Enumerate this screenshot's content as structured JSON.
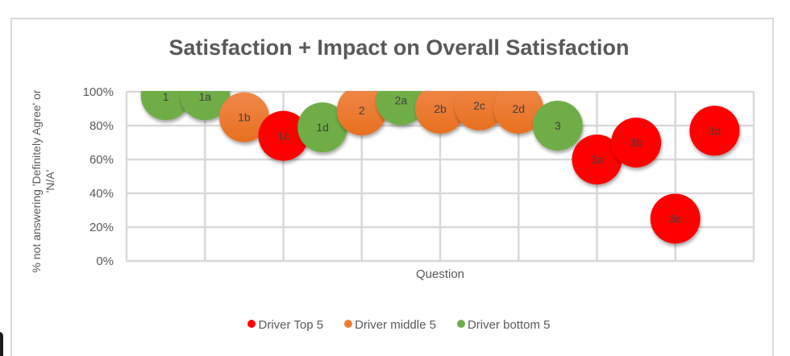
{
  "chart_data": {
    "type": "scatter",
    "subtype": "bubble",
    "title": "Satisfaction + Impact on Overall Satisfaction",
    "xlabel": "Question",
    "ylabel": "% not answering 'Definitely Agree' or 'N/A'",
    "ylabel_lines": [
      "% not answering 'Definitely Agree' or",
      "'N/A'"
    ],
    "xlim": [
      0,
      8
    ],
    "ylim": [
      0,
      1
    ],
    "y_ticks": [
      "0%",
      "20%",
      "40%",
      "60%",
      "80%",
      "100%"
    ],
    "y_tick_values": [
      0,
      0.2,
      0.4,
      0.6,
      0.8,
      1.0
    ],
    "x_grid": [
      0,
      1,
      2,
      3,
      4,
      5,
      6,
      7,
      8
    ],
    "grid": true,
    "legend_position": "bottom",
    "series": [
      {
        "name": "Driver Top 5",
        "color": "#ff0000"
      },
      {
        "name": "Driver middle 5",
        "color": "#ed7d31"
      },
      {
        "name": "Driver bottom 5",
        "color": "#70ad47"
      }
    ],
    "points": [
      {
        "label": "1",
        "x": 0.5,
        "y": 0.98,
        "series": "Driver bottom 5"
      },
      {
        "label": "1a",
        "x": 1.0,
        "y": 0.98,
        "series": "Driver bottom 5"
      },
      {
        "label": "1b",
        "x": 1.5,
        "y": 0.85,
        "series": "Driver middle 5"
      },
      {
        "label": "1c",
        "x": 2.0,
        "y": 0.74,
        "series": "Driver Top 5"
      },
      {
        "label": "1d",
        "x": 2.5,
        "y": 0.79,
        "series": "Driver bottom 5"
      },
      {
        "label": "2",
        "x": 3.0,
        "y": 0.89,
        "series": "Driver middle 5"
      },
      {
        "label": "2a",
        "x": 3.5,
        "y": 0.95,
        "series": "Driver bottom 5"
      },
      {
        "label": "2b",
        "x": 4.0,
        "y": 0.9,
        "series": "Driver middle 5"
      },
      {
        "label": "2c",
        "x": 4.5,
        "y": 0.92,
        "series": "Driver middle 5"
      },
      {
        "label": "2d",
        "x": 5.0,
        "y": 0.9,
        "series": "Driver middle 5"
      },
      {
        "label": "3",
        "x": 5.5,
        "y": 0.8,
        "series": "Driver bottom 5"
      },
      {
        "label": "3a",
        "x": 6.0,
        "y": 0.6,
        "series": "Driver Top 5"
      },
      {
        "label": "3b",
        "x": 6.5,
        "y": 0.7,
        "series": "Driver Top 5"
      },
      {
        "label": "3c",
        "x": 7.0,
        "y": 0.25,
        "series": "Driver Top 5"
      },
      {
        "label": "3d",
        "x": 7.5,
        "y": 0.77,
        "series": "Driver Top 5"
      }
    ]
  }
}
